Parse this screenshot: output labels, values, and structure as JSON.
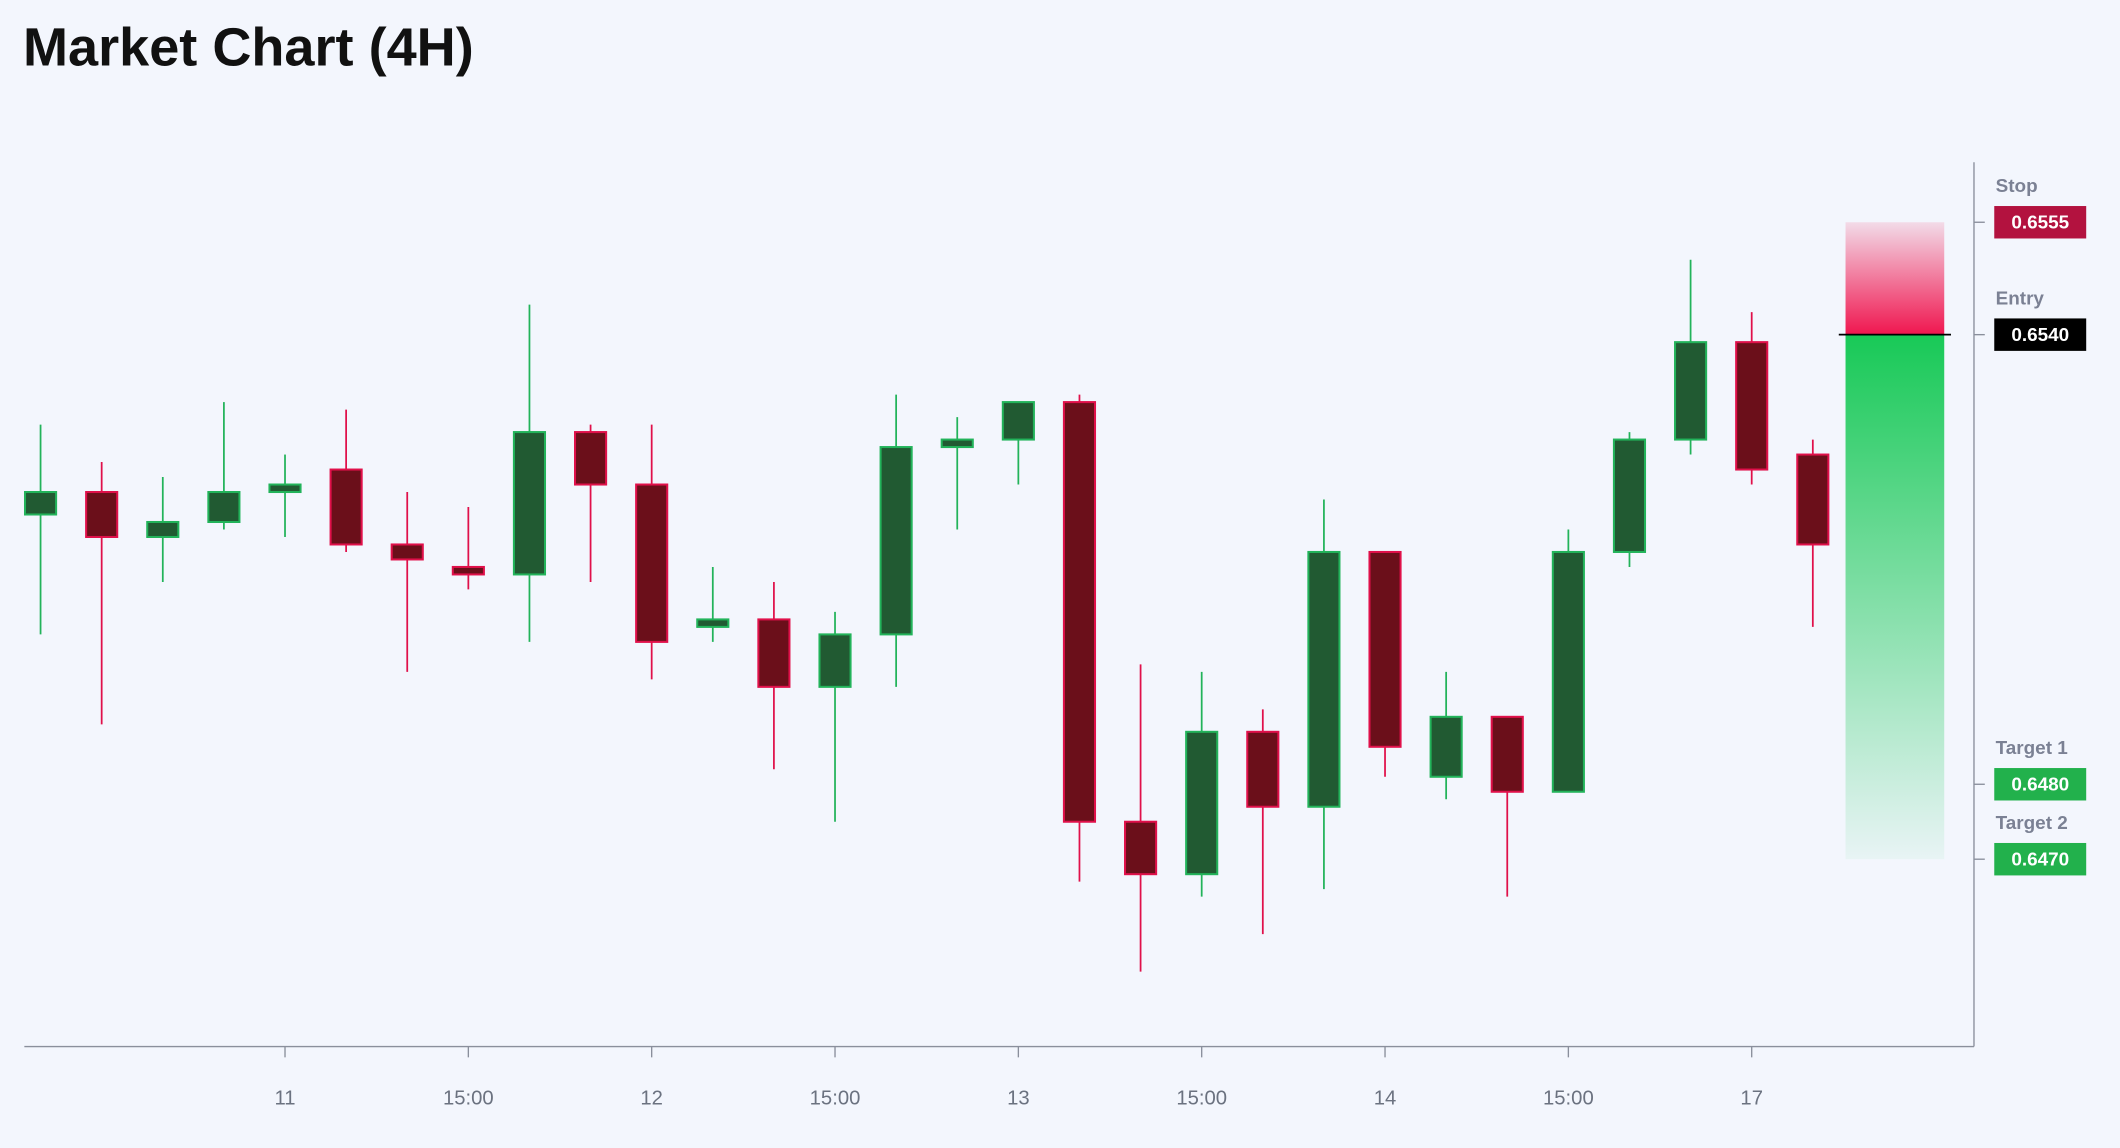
{
  "chart_data": {
    "type": "candlestick",
    "title": "Market Chart (4H)",
    "categories": [
      null,
      null,
      null,
      null,
      "11",
      null,
      null,
      "15:00",
      null,
      null,
      "12",
      null,
      null,
      "15:00",
      null,
      null,
      "13",
      null,
      null,
      "15:00",
      null,
      null,
      "14",
      null,
      null,
      "15:00",
      null,
      null,
      "17",
      null
    ],
    "series": [
      {
        "name": "open",
        "values": [
          0.6516,
          0.6519,
          0.6513,
          0.6515,
          0.6519,
          0.6522,
          0.6512,
          0.6509,
          0.6508,
          0.6527,
          0.652,
          0.6501,
          0.6502,
          0.6493,
          0.65,
          0.6525,
          0.6526,
          0.6531,
          0.6475,
          0.6468,
          0.6487,
          0.6477,
          0.6511,
          0.6481,
          0.6489,
          0.6479,
          0.6511,
          0.6526,
          0.6539,
          0.6524
        ]
      },
      {
        "name": "high",
        "values": [
          0.6528,
          0.6523,
          0.6521,
          0.6531,
          0.6524,
          0.653,
          0.6519,
          0.6517,
          0.6544,
          0.6528,
          0.6528,
          0.6509,
          0.6507,
          0.6503,
          0.6532,
          0.6529,
          0.6531,
          0.6532,
          0.6496,
          0.6495,
          0.649,
          0.6518,
          0.6511,
          0.6495,
          0.6489,
          0.6514,
          0.6527,
          0.655,
          0.6543,
          0.6526
        ]
      },
      {
        "name": "low",
        "values": [
          0.65,
          0.6488,
          0.6507,
          0.6514,
          0.6513,
          0.6511,
          0.6495,
          0.6506,
          0.6499,
          0.6507,
          0.6494,
          0.6499,
          0.6482,
          0.6475,
          0.6493,
          0.6514,
          0.652,
          0.6467,
          0.6455,
          0.6465,
          0.646,
          0.6466,
          0.6481,
          0.6478,
          0.6465,
          0.6479,
          0.6509,
          0.6524,
          0.652,
          0.6501
        ]
      },
      {
        "name": "close",
        "values": [
          0.6519,
          0.6513,
          0.6515,
          0.6519,
          0.652,
          0.6512,
          0.651,
          0.6508,
          0.6527,
          0.652,
          0.6499,
          0.6502,
          0.6493,
          0.65,
          0.6525,
          0.6526,
          0.6531,
          0.6475,
          0.6468,
          0.6487,
          0.6477,
          0.6511,
          0.6485,
          0.6489,
          0.6479,
          0.6511,
          0.6526,
          0.6539,
          0.6522,
          0.6512
        ]
      }
    ],
    "up_color": "#22b35a",
    "up_fill": "#215a32",
    "down_color": "#e0104a",
    "down_fill": "#6b0f1a",
    "ylim": [
      0.6445,
      0.6563
    ],
    "levels": [
      {
        "name": "Stop",
        "value": 0.6555,
        "label": "0.6555",
        "color": "#b3123f"
      },
      {
        "name": "Entry",
        "value": 0.654,
        "label": "0.6540",
        "color": "#000000"
      },
      {
        "name": "Target 1",
        "value": 0.648,
        "label": "0.6480",
        "color": "#22b14c"
      },
      {
        "name": "Target 2",
        "value": 0.647,
        "label": "0.6470",
        "color": "#22b14c"
      }
    ]
  }
}
